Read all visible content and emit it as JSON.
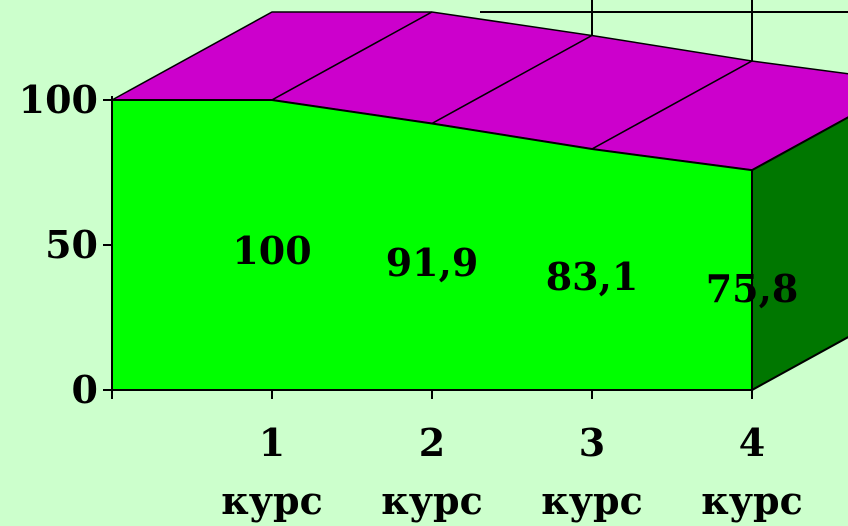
{
  "chart_data": {
    "type": "area",
    "categories": [
      [
        "1",
        "курс"
      ],
      [
        "2",
        "курс"
      ],
      [
        "3",
        "курс"
      ],
      [
        "4",
        "курс"
      ]
    ],
    "values": [
      100,
      91.9,
      83.1,
      75.8
    ],
    "data_labels": [
      "100",
      "91,9",
      "83,1",
      "75,8"
    ],
    "yticks": [
      "0",
      "50",
      "100"
    ],
    "ytick_values": [
      0,
      50,
      100
    ],
    "ylim": [
      0,
      100
    ],
    "title": "",
    "xlabel": "",
    "ylabel": "",
    "three_d": true,
    "colors": {
      "background": "#ccffcc",
      "front": "#00ff00",
      "top": "#cc00cc",
      "side": "#007700",
      "axis": "#000000"
    }
  }
}
